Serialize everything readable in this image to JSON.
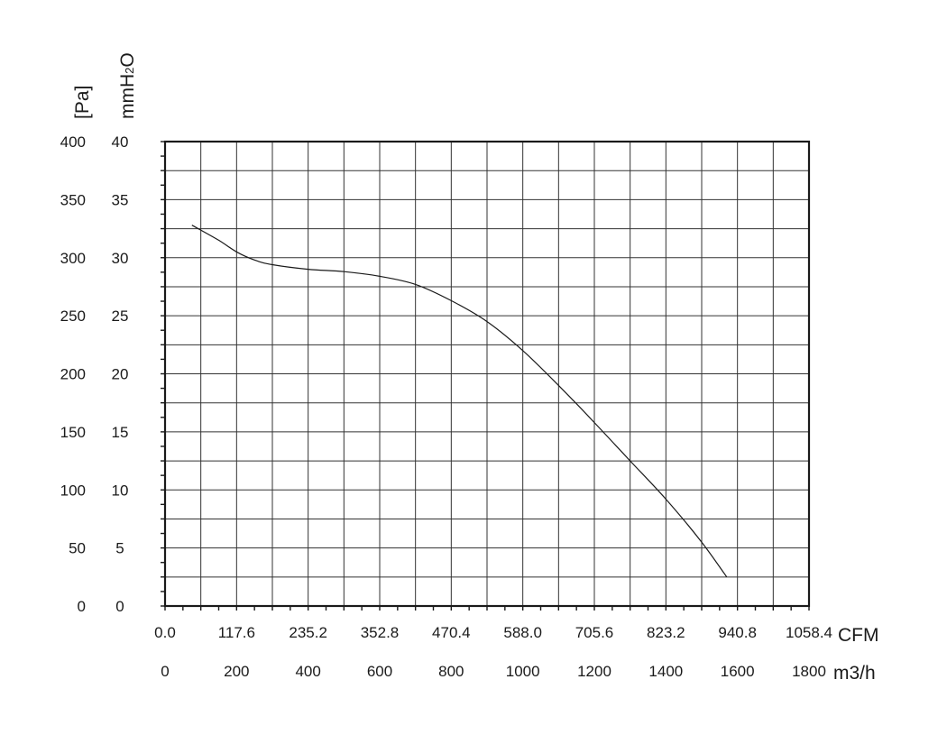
{
  "chart_data": {
    "type": "line",
    "title": "",
    "grid": true,
    "x_axis_primary": {
      "unit": "m3/h",
      "range": [
        0,
        1800
      ],
      "ticks": [
        "0",
        "200",
        "400",
        "600",
        "800",
        "1000",
        "1200",
        "1400",
        "1600",
        "1800"
      ]
    },
    "x_axis_secondary": {
      "unit": "CFM",
      "range": [
        0,
        1058.4
      ],
      "ticks": [
        "0.0",
        "117.6",
        "235.2",
        "352.8",
        "470.4",
        "588.0",
        "705.6",
        "823.2",
        "940.8",
        "1058.4"
      ]
    },
    "y_axis_primary": {
      "unit": "[Pa]",
      "range": [
        0,
        400
      ],
      "ticks": [
        "0",
        "50",
        "100",
        "150",
        "200",
        "250",
        "300",
        "350",
        "400"
      ]
    },
    "y_axis_secondary": {
      "unit_main": "mmH",
      "unit_sub": "2",
      "unit_end": "O",
      "range": [
        0,
        40
      ],
      "ticks": [
        "0",
        "5",
        "10",
        "15",
        "20",
        "25",
        "30",
        "35",
        "40"
      ]
    },
    "series": [
      {
        "x": [
          75,
          150,
          200,
          250,
          300,
          400,
          500,
          600,
          700,
          800,
          900,
          1000,
          1100,
          1200,
          1300,
          1400,
          1500,
          1570
        ],
        "y": [
          328,
          315,
          305,
          298,
          294,
          290,
          288,
          284,
          277,
          263,
          245,
          220,
          190,
          158,
          125,
          92,
          55,
          25
        ]
      }
    ]
  }
}
